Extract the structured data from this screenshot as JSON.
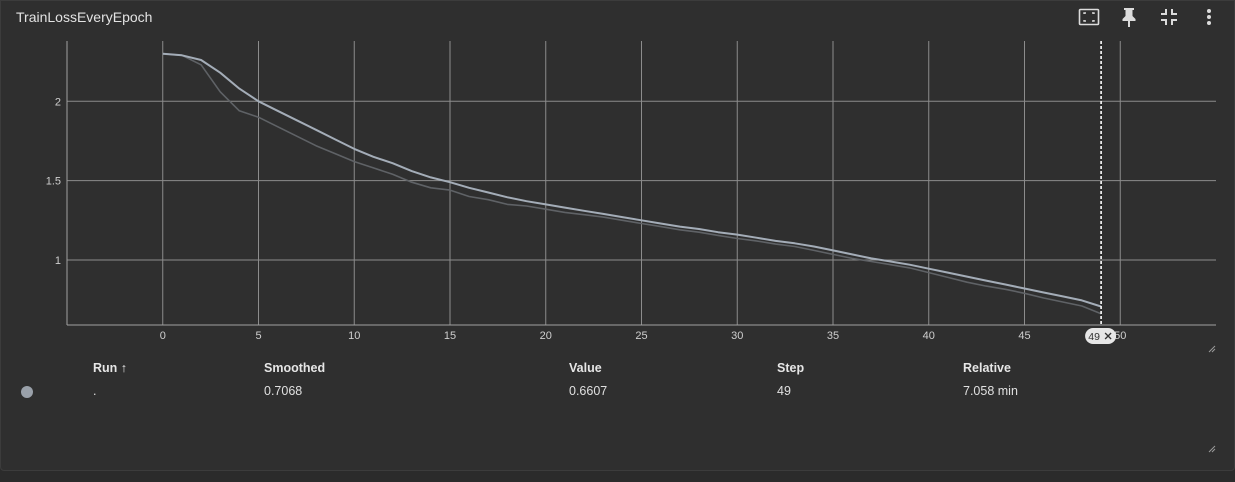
{
  "card": {
    "title": "TrainLossEveryEpoch",
    "toolbar": {
      "fit_icon": "fit-domain-icon",
      "pin_icon": "pin-icon",
      "collapse_icon": "fullscreen-exit-icon",
      "more_icon": "more-vert-icon"
    }
  },
  "chart_data": {
    "type": "line",
    "title": "TrainLossEveryEpoch",
    "xlabel": "",
    "ylabel": "",
    "xlim": [
      -5,
      55
    ],
    "ylim": [
      0.59,
      2.38
    ],
    "xticks": [
      0,
      5,
      10,
      15,
      20,
      25,
      30,
      35,
      40,
      45,
      50
    ],
    "yticks": [
      1,
      1.5,
      2
    ],
    "ytick_labels": [
      "1",
      "1.5",
      "2"
    ],
    "grid": true,
    "hover_step": 49,
    "hover_label": "49",
    "colors": {
      "smoothed": "#a4adb8",
      "raw": "#5f6266",
      "grid": "#8c8c8c",
      "hover": "#ffffff"
    },
    "series": [
      {
        "key": "raw",
        "values": [
          [
            0,
            2.3
          ],
          [
            1,
            2.29
          ],
          [
            2,
            2.23
          ],
          [
            3,
            2.06
          ],
          [
            4,
            1.94
          ],
          [
            5,
            1.9
          ],
          [
            6,
            1.84
          ],
          [
            7,
            1.78
          ],
          [
            8,
            1.72
          ],
          [
            9,
            1.67
          ],
          [
            10,
            1.62
          ],
          [
            11,
            1.58
          ],
          [
            12,
            1.54
          ],
          [
            13,
            1.49
          ],
          [
            14,
            1.455
          ],
          [
            15,
            1.44
          ],
          [
            16,
            1.4
          ],
          [
            17,
            1.38
          ],
          [
            18,
            1.35
          ],
          [
            19,
            1.34
          ],
          [
            20,
            1.32
          ],
          [
            21,
            1.3
          ],
          [
            22,
            1.285
          ],
          [
            23,
            1.27
          ],
          [
            24,
            1.25
          ],
          [
            25,
            1.23
          ],
          [
            26,
            1.21
          ],
          [
            27,
            1.19
          ],
          [
            28,
            1.175
          ],
          [
            29,
            1.155
          ],
          [
            30,
            1.135
          ],
          [
            31,
            1.12
          ],
          [
            32,
            1.1
          ],
          [
            33,
            1.085
          ],
          [
            34,
            1.06
          ],
          [
            35,
            1.035
          ],
          [
            36,
            1.01
          ],
          [
            37,
            0.99
          ],
          [
            38,
            0.97
          ],
          [
            39,
            0.95
          ],
          [
            40,
            0.92
          ],
          [
            41,
            0.89
          ],
          [
            42,
            0.86
          ],
          [
            43,
            0.835
          ],
          [
            44,
            0.815
          ],
          [
            45,
            0.79
          ],
          [
            46,
            0.76
          ],
          [
            47,
            0.735
          ],
          [
            48,
            0.71
          ],
          [
            49,
            0.6607
          ]
        ]
      },
      {
        "key": "smoothed",
        "values": [
          [
            0,
            2.3
          ],
          [
            1,
            2.29
          ],
          [
            2,
            2.26
          ],
          [
            3,
            2.18
          ],
          [
            4,
            2.08
          ],
          [
            5,
            2.0
          ],
          [
            6,
            1.94
          ],
          [
            7,
            1.88
          ],
          [
            8,
            1.82
          ],
          [
            9,
            1.76
          ],
          [
            10,
            1.7
          ],
          [
            11,
            1.65
          ],
          [
            12,
            1.61
          ],
          [
            13,
            1.56
          ],
          [
            14,
            1.52
          ],
          [
            15,
            1.49
          ],
          [
            16,
            1.455
          ],
          [
            17,
            1.425
          ],
          [
            18,
            1.395
          ],
          [
            19,
            1.37
          ],
          [
            20,
            1.35
          ],
          [
            21,
            1.33
          ],
          [
            22,
            1.31
          ],
          [
            23,
            1.29
          ],
          [
            24,
            1.27
          ],
          [
            25,
            1.25
          ],
          [
            26,
            1.23
          ],
          [
            27,
            1.21
          ],
          [
            28,
            1.195
          ],
          [
            29,
            1.175
          ],
          [
            30,
            1.16
          ],
          [
            31,
            1.14
          ],
          [
            32,
            1.12
          ],
          [
            33,
            1.105
          ],
          [
            34,
            1.085
          ],
          [
            35,
            1.06
          ],
          [
            36,
            1.035
          ],
          [
            37,
            1.01
          ],
          [
            38,
            0.99
          ],
          [
            39,
            0.97
          ],
          [
            40,
            0.945
          ],
          [
            41,
            0.92
          ],
          [
            42,
            0.895
          ],
          [
            43,
            0.87
          ],
          [
            44,
            0.845
          ],
          [
            45,
            0.82
          ],
          [
            46,
            0.795
          ],
          [
            47,
            0.77
          ],
          [
            48,
            0.745
          ],
          [
            49,
            0.7068
          ]
        ]
      }
    ]
  },
  "table": {
    "headers": {
      "run": "Run ↑",
      "smoothed": "Smoothed",
      "value": "Value",
      "step": "Step",
      "relative": "Relative"
    },
    "row": {
      "run": ".",
      "smoothed": "0.7068",
      "value": "0.6607",
      "step": "49",
      "relative": "7.058 min",
      "color": "#9aa1aa"
    }
  }
}
